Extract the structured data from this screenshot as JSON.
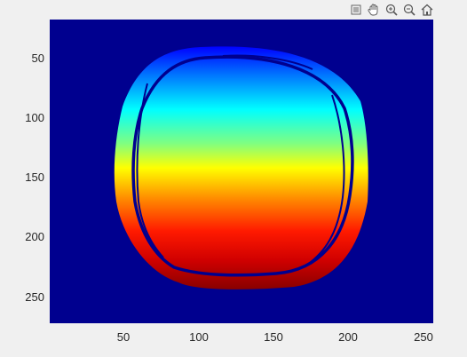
{
  "toolbar": {
    "icons": [
      "brush-icon",
      "pan-hand-icon",
      "zoom-in-icon",
      "zoom-out-icon",
      "home-icon"
    ]
  },
  "image": {
    "colormap": "jet",
    "background_color": "#00008f",
    "xlim": [
      1,
      256
    ],
    "ylim": [
      1,
      256
    ],
    "x_ticks": [
      "50",
      "100",
      "150",
      "200",
      "250"
    ],
    "y_ticks": [
      "50",
      "100",
      "150",
      "200",
      "250"
    ]
  }
}
